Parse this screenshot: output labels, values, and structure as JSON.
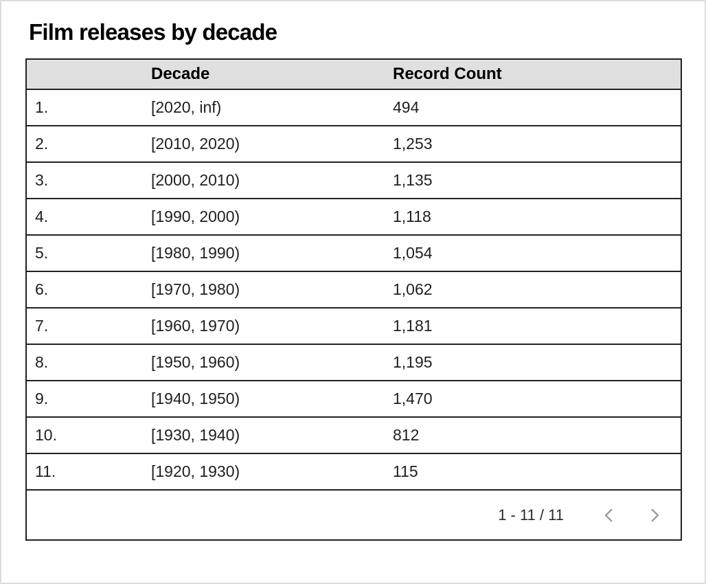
{
  "title": "Film releases by decade",
  "table": {
    "header": {
      "index": "",
      "decade": "Decade",
      "record_count": "Record Count"
    },
    "rows": [
      {
        "index": "1.",
        "decade": "[2020, inf)",
        "count": "494"
      },
      {
        "index": "2.",
        "decade": "[2010, 2020)",
        "count": "1,253"
      },
      {
        "index": "3.",
        "decade": "[2000, 2010)",
        "count": "1,135"
      },
      {
        "index": "4.",
        "decade": "[1990, 2000)",
        "count": "1,118"
      },
      {
        "index": "5.",
        "decade": "[1980, 1990)",
        "count": "1,054"
      },
      {
        "index": "6.",
        "decade": "[1970, 1980)",
        "count": "1,062"
      },
      {
        "index": "7.",
        "decade": "[1960, 1970)",
        "count": "1,181"
      },
      {
        "index": "8.",
        "decade": "[1950, 1960)",
        "count": "1,195"
      },
      {
        "index": "9.",
        "decade": "[1940, 1950)",
        "count": "1,470"
      },
      {
        "index": "10.",
        "decade": "[1930, 1940)",
        "count": "812"
      },
      {
        "index": "11.",
        "decade": "[1920, 1930)",
        "count": "115"
      }
    ]
  },
  "pagination": {
    "range_label": "1 - 11 / 11",
    "prev_icon": "chevron-left-icon",
    "next_icon": "chevron-right-icon"
  },
  "colors": {
    "header_bg": "#e0e0e0",
    "border": "#212121",
    "body_text": "#1f1f1f",
    "chevron_disabled": "#9e9e9e",
    "page_frame": "#dcdcdc"
  },
  "chart_data": {
    "type": "table",
    "title": "Film releases by decade",
    "columns": [
      "Decade",
      "Record Count"
    ],
    "rows": [
      [
        "[2020, inf)",
        494
      ],
      [
        "[2010, 2020)",
        1253
      ],
      [
        "[2000, 2010)",
        1135
      ],
      [
        "[1990, 2000)",
        1118
      ],
      [
        "[1980, 1990)",
        1054
      ],
      [
        "[1970, 1980)",
        1062
      ],
      [
        "[1960, 1970)",
        1181
      ],
      [
        "[1950, 1960)",
        1195
      ],
      [
        "[1940, 1950)",
        1470
      ],
      [
        "[1930, 1940)",
        812
      ],
      [
        "[1920, 1930)",
        115
      ]
    ],
    "pagination": "1 - 11 / 11"
  }
}
